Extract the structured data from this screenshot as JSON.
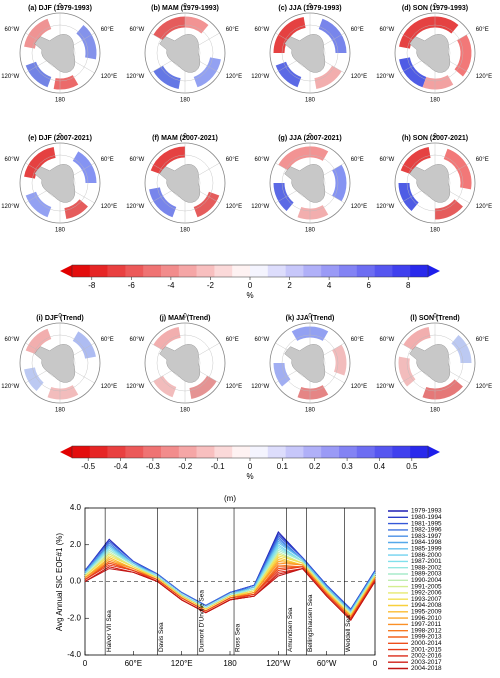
{
  "panels": [
    "(a) DJF (1979-1993)",
    "(b) MAM (1979-1993)",
    "(c) JJA (1979-1993)",
    "(d) SON (1979-1993)",
    "(e) DJF (2007-2021)",
    "(f) MAM (2007-2021)",
    "(g) JJA (2007-2021)",
    "(h) SON (2007-2021)",
    "(i) DJF (Trend)",
    "(j) MAM (Trend)",
    "(k) JJA (Trend)",
    "(l) SON (Trend)"
  ],
  "map_labels": [
    "0",
    "60°E",
    "120°E",
    "180",
    "120°W",
    "60°W"
  ],
  "colorbars": [
    {
      "lim": [
        -9,
        9
      ],
      "ticks": [
        -8,
        -6,
        -4,
        -2,
        0,
        2,
        4,
        6,
        8
      ],
      "label": "%"
    },
    {
      "lim": [
        -0.55,
        0.55
      ],
      "ticks": [
        -0.5,
        -0.4,
        -0.3,
        -0.2,
        -0.1,
        0,
        0.1,
        0.2,
        0.3,
        0.4,
        0.5
      ],
      "label": "%"
    }
  ],
  "chart_data": {
    "type": "line",
    "title": "(m)",
    "ylabel": "Avg Annual SIC EOF#1 (%)",
    "x": [
      0,
      30,
      60,
      90,
      120,
      150,
      180,
      210,
      240,
      270,
      300,
      330,
      360
    ],
    "xlim": [
      0,
      360
    ],
    "xticks": [
      0,
      {
        "value": 60,
        "label": "60°E"
      },
      {
        "value": 120,
        "label": "120°E"
      },
      180,
      {
        "value": 240,
        "label": "120°W"
      },
      {
        "value": 300,
        "label": "60°W"
      },
      {
        "value": 360,
        "label": "0"
      }
    ],
    "ylim": [
      -4,
      4
    ],
    "yticks": [
      {
        "value": -4,
        "label": "-4.0"
      },
      {
        "value": -2,
        "label": "-2.0"
      },
      {
        "value": 0,
        "label": "0.0"
      },
      {
        "value": 2,
        "label": "2.0"
      },
      {
        "value": 4,
        "label": "4.0"
      }
    ],
    "hline": 0,
    "annotations": [
      {
        "text": "Halvor VII Sea",
        "x": 25
      },
      {
        "text": "Davis Sea",
        "x": 90
      },
      {
        "text": "Dumont D'Urville Sea",
        "x": 140
      },
      {
        "text": "Ross Sea",
        "x": 185
      },
      {
        "text": "Amundsen Sea",
        "x": 250
      },
      {
        "text": "Bellingshausen Sea",
        "x": 275
      },
      {
        "text": "Weddell Sea",
        "x": 322
      }
    ],
    "series": [
      {
        "name": "1979-1993",
        "color": "#1f1fb4",
        "values": [
          0.6,
          2.3,
          1.1,
          0.4,
          -0.6,
          -1.3,
          -0.6,
          -0.2,
          2.7,
          1.3,
          -0.2,
          -1.5,
          0.6
        ]
      },
      {
        "name": "1980-1994",
        "color": "#2a3cc8",
        "values": [
          0.6,
          2.2,
          1.1,
          0.4,
          -0.6,
          -1.3,
          -0.6,
          -0.2,
          2.6,
          1.3,
          -0.2,
          -1.5,
          0.6
        ]
      },
      {
        "name": "1981-1995",
        "color": "#3558d8",
        "values": [
          0.6,
          2.2,
          1.1,
          0.4,
          -0.6,
          -1.3,
          -0.6,
          -0.2,
          2.5,
          1.3,
          -0.2,
          -1.5,
          0.6
        ]
      },
      {
        "name": "1982-1996",
        "color": "#3f74e0",
        "values": [
          0.5,
          2.1,
          1.0,
          0.4,
          -0.6,
          -1.3,
          -0.6,
          -0.3,
          2.4,
          1.2,
          -0.3,
          -1.6,
          0.5
        ]
      },
      {
        "name": "1983-1997",
        "color": "#4a8fe6",
        "values": [
          0.5,
          2.0,
          1.0,
          0.3,
          -0.7,
          -1.4,
          -0.7,
          -0.3,
          2.3,
          1.2,
          -0.3,
          -1.6,
          0.5
        ]
      },
      {
        "name": "1984-1998",
        "color": "#55a8ea",
        "values": [
          0.5,
          2.0,
          1.0,
          0.3,
          -0.7,
          -1.4,
          -0.7,
          -0.3,
          2.2,
          1.2,
          -0.3,
          -1.6,
          0.5
        ]
      },
      {
        "name": "1985-1999",
        "color": "#62bfee",
        "values": [
          0.5,
          1.9,
          1.0,
          0.3,
          -0.7,
          -1.4,
          -0.7,
          -0.3,
          2.1,
          1.2,
          -0.3,
          -1.6,
          0.5
        ]
      },
      {
        "name": "1986-2000",
        "color": "#70d2ef",
        "values": [
          0.4,
          1.9,
          0.9,
          0.3,
          -0.7,
          -1.4,
          -0.7,
          -0.4,
          2.0,
          1.1,
          -0.4,
          -1.7,
          0.4
        ]
      },
      {
        "name": "1987-2001",
        "color": "#80e0ec",
        "values": [
          0.4,
          1.8,
          0.9,
          0.3,
          -0.7,
          -1.4,
          -0.7,
          -0.4,
          1.9,
          1.1,
          -0.4,
          -1.7,
          0.4
        ]
      },
      {
        "name": "1988-2002",
        "color": "#94e8e0",
        "values": [
          0.4,
          1.7,
          0.9,
          0.3,
          -0.7,
          -1.4,
          -0.7,
          -0.4,
          1.8,
          1.1,
          -0.4,
          -1.7,
          0.4
        ]
      },
      {
        "name": "1989-2003",
        "color": "#a8eccc",
        "values": [
          0.4,
          1.7,
          0.9,
          0.2,
          -0.8,
          -1.5,
          -0.8,
          -0.4,
          1.7,
          1.1,
          -0.4,
          -1.7,
          0.4
        ]
      },
      {
        "name": "1990-2004",
        "color": "#bfeeb0",
        "values": [
          0.3,
          1.6,
          0.8,
          0.2,
          -0.8,
          -1.5,
          -0.8,
          -0.5,
          1.6,
          1.0,
          -0.5,
          -1.8,
          0.3
        ]
      },
      {
        "name": "1991-2005",
        "color": "#d4ee90",
        "values": [
          0.3,
          1.5,
          0.8,
          0.2,
          -0.8,
          -1.5,
          -0.8,
          -0.5,
          1.5,
          1.0,
          -0.5,
          -1.8,
          0.3
        ]
      },
      {
        "name": "1992-2006",
        "color": "#e6ea70",
        "values": [
          0.3,
          1.5,
          0.8,
          0.2,
          -0.8,
          -1.5,
          -0.8,
          -0.5,
          1.5,
          1.0,
          -0.5,
          -1.8,
          0.3
        ]
      },
      {
        "name": "1993-2007",
        "color": "#f2e050",
        "values": [
          0.3,
          1.4,
          0.8,
          0.2,
          -0.8,
          -1.5,
          -0.8,
          -0.5,
          1.4,
          1.0,
          -0.5,
          -1.8,
          0.3
        ]
      },
      {
        "name": "1994-2008",
        "color": "#f8d03c",
        "values": [
          0.2,
          1.3,
          0.7,
          0.2,
          -0.8,
          -1.5,
          -0.8,
          -0.6,
          1.3,
          0.9,
          -0.6,
          -1.9,
          0.2
        ]
      },
      {
        "name": "1995-2009",
        "color": "#fbbc30",
        "values": [
          0.2,
          1.3,
          0.7,
          0.1,
          -0.9,
          -1.6,
          -0.9,
          -0.6,
          1.2,
          0.9,
          -0.6,
          -1.9,
          0.2
        ]
      },
      {
        "name": "1996-2010",
        "color": "#fca62a",
        "values": [
          0.2,
          1.2,
          0.7,
          0.1,
          -0.9,
          -1.6,
          -0.9,
          -0.6,
          1.1,
          0.9,
          -0.6,
          -1.9,
          0.2
        ]
      },
      {
        "name": "1997-2011",
        "color": "#fb9026",
        "values": [
          0.2,
          1.1,
          0.7,
          0.1,
          -0.9,
          -1.6,
          -0.9,
          -0.6,
          1.0,
          0.9,
          -0.6,
          -1.9,
          0.2
        ]
      },
      {
        "name": "1998-2012",
        "color": "#f87a22",
        "values": [
          0.1,
          1.1,
          0.6,
          0.1,
          -0.9,
          -1.6,
          -0.9,
          -0.7,
          0.9,
          0.8,
          -0.7,
          -2.0,
          0.1
        ]
      },
      {
        "name": "1999-2013",
        "color": "#f4641f",
        "values": [
          0.1,
          1.0,
          0.6,
          0.1,
          -0.9,
          -1.6,
          -0.9,
          -0.7,
          0.8,
          0.8,
          -0.7,
          -2.0,
          0.1
        ]
      },
      {
        "name": "2000-2014",
        "color": "#ee4e1c",
        "values": [
          0.1,
          1.0,
          0.6,
          0.1,
          -0.9,
          -1.6,
          -0.9,
          -0.7,
          0.7,
          0.8,
          -0.7,
          -2.0,
          0.1
        ]
      },
      {
        "name": "2001-2015",
        "color": "#e63a1a",
        "values": [
          0.1,
          0.9,
          0.6,
          0.0,
          -1.0,
          -1.7,
          -1.0,
          -0.7,
          0.6,
          0.8,
          -0.7,
          -2.0,
          0.1
        ]
      },
      {
        "name": "2002-2016",
        "color": "#dc2a18",
        "values": [
          0.0,
          0.8,
          0.5,
          0.0,
          -1.0,
          -1.7,
          -1.0,
          -0.8,
          0.5,
          0.7,
          -0.8,
          -2.1,
          0.0
        ]
      },
      {
        "name": "2003-2017",
        "color": "#cf1e16",
        "values": [
          0.0,
          0.8,
          0.5,
          0.0,
          -1.0,
          -1.7,
          -1.0,
          -0.8,
          0.4,
          0.7,
          -0.8,
          -2.1,
          0.0
        ]
      },
      {
        "name": "2004-2018",
        "color": "#c01414",
        "values": [
          0.0,
          0.7,
          0.5,
          0.0,
          -1.0,
          -1.7,
          -1.0,
          -0.8,
          0.3,
          0.7,
          -0.8,
          -2.1,
          0.0
        ]
      }
    ]
  }
}
